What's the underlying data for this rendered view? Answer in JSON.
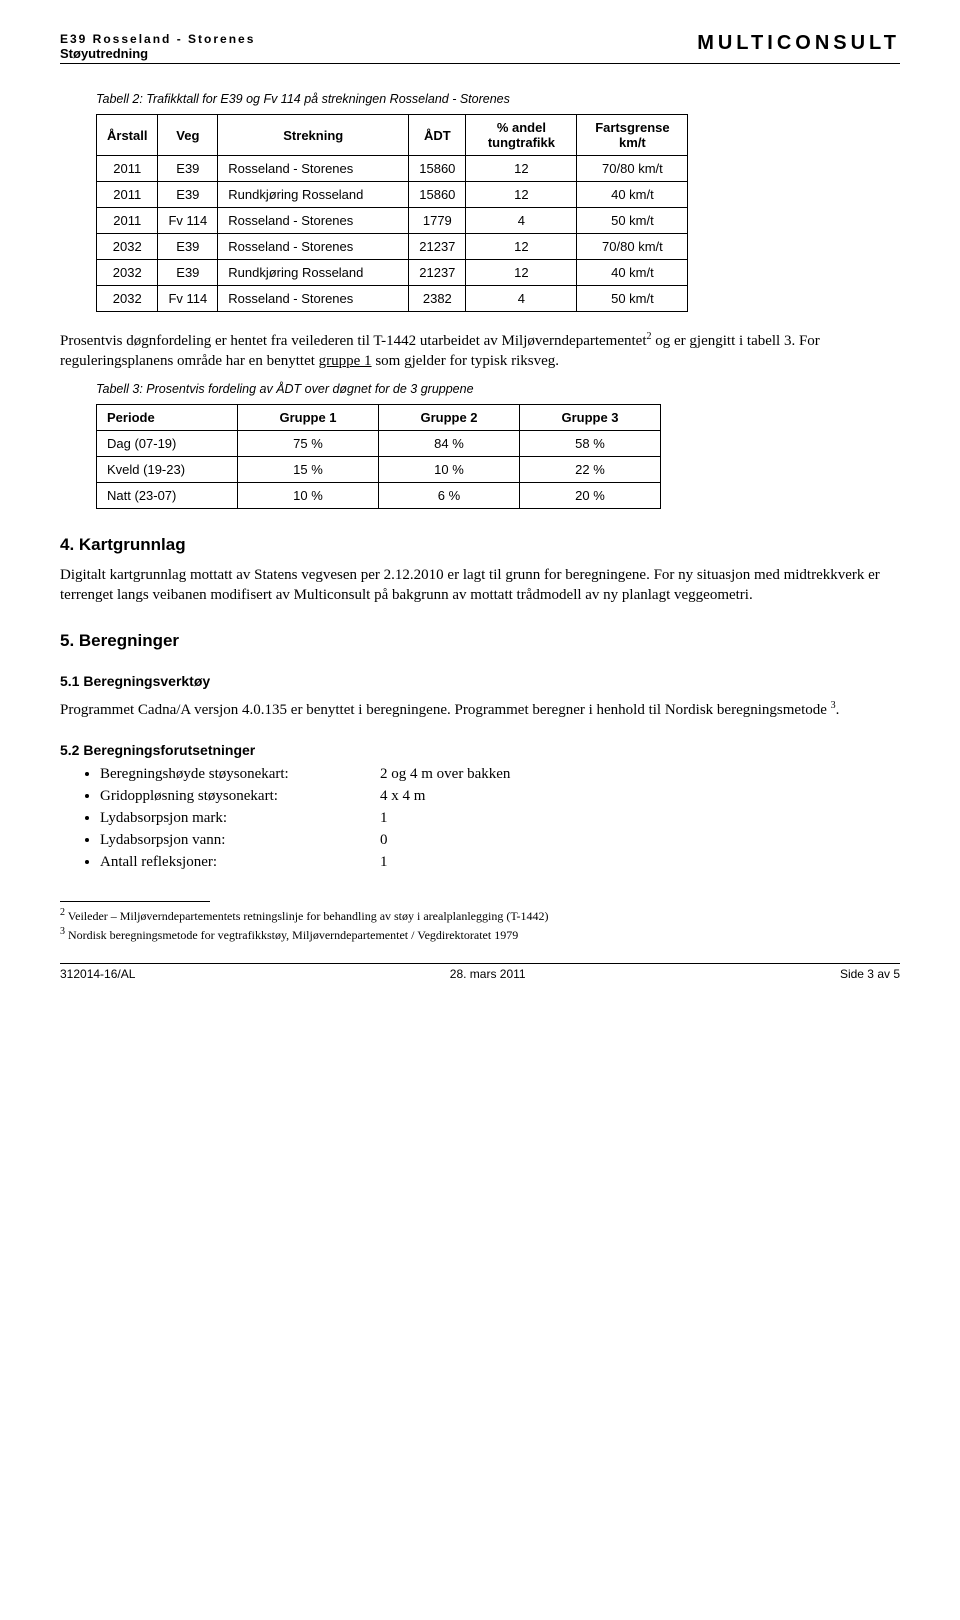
{
  "header": {
    "left_line1": "E39 Rosseland - Storenes",
    "left_line2": "Støyutredning",
    "right": "MULTICONSULT"
  },
  "table2": {
    "caption": "Tabell 2: Trafikktall for E39 og Fv 114 på strekningen Rosseland - Storenes",
    "columns": [
      "Årstall",
      "Veg",
      "Strekning",
      "ÅDT",
      "% andel tungtrafikk",
      "Fartsgrense km/t"
    ],
    "rows": [
      [
        "2011",
        "E39",
        "Rosseland - Storenes",
        "15860",
        "12",
        "70/80 km/t"
      ],
      [
        "2011",
        "E39",
        "Rundkjøring Rosseland",
        "15860",
        "12",
        "40 km/t"
      ],
      [
        "2011",
        "Fv 114",
        "Rosseland - Storenes",
        "1779",
        "4",
        "50 km/t"
      ],
      [
        "2032",
        "E39",
        "Rosseland - Storenes",
        "21237",
        "12",
        "70/80 km/t"
      ],
      [
        "2032",
        "E39",
        "Rundkjøring Rosseland",
        "21237",
        "12",
        "40 km/t"
      ],
      [
        "2032",
        "Fv 114",
        "Rosseland - Storenes",
        "2382",
        "4",
        "50 km/t"
      ]
    ]
  },
  "para1a": "Prosentvis døgnfordeling er hentet fra veilederen til T-1442 utarbeidet av Miljøverndepartementet",
  "para1b": " og er gjengitt i tabell 3. For reguleringsplanens område har en benyttet ",
  "para1_underline": "gruppe 1",
  "para1c": " som gjelder for typisk riksveg.",
  "table3": {
    "caption": "Tabell 3: Prosentvis fordeling av ÅDT over døgnet for de 3 gruppene",
    "columns": [
      "Periode",
      "Gruppe 1",
      "Gruppe 2",
      "Gruppe 3"
    ],
    "rows": [
      [
        "Dag (07-19)",
        "75 %",
        "84 %",
        "58 %"
      ],
      [
        "Kveld (19-23)",
        "15 %",
        "10 %",
        "22 %"
      ],
      [
        "Natt (23-07)",
        "10 %",
        "6 %",
        "20 %"
      ]
    ]
  },
  "sec4": {
    "title": "4.      Kartgrunnlag",
    "text": "Digitalt kartgrunnlag mottatt av Statens vegvesen per 2.12.2010 er lagt til grunn for beregningene. For ny situasjon med midtrekkverk er terrenget langs veibanen modifisert av Multiconsult på bakgrunn av mottatt trådmodell av ny planlagt veggeometri."
  },
  "sec5": {
    "title": "5.      Beregninger"
  },
  "sec51": {
    "title": "5.1      Beregningsverktøy",
    "text_a": "Programmet Cadna/A versjon 4.0.135 er benyttet i beregningene. Programmet beregner i henhold til Nordisk beregningsmetode ",
    "text_b": "."
  },
  "sec52": {
    "title": "5.2      Beregningsforutsetninger",
    "items": [
      {
        "label": "Beregningshøyde støysonekart:",
        "value": "2 og 4 m over bakken"
      },
      {
        "label": "Gridoppløsning støysonekart:",
        "value": "4 x 4 m"
      },
      {
        "label": "Lydabsorpsjon mark:",
        "value": "1"
      },
      {
        "label": "Lydabsorpsjon vann:",
        "value": "0"
      },
      {
        "label": "Antall refleksjoner:",
        "value": "1"
      }
    ]
  },
  "footnotes": {
    "f2_num": "2",
    "f2": " Veileder – Miljøverndepartementets retningslinje for behandling av støy i arealplanlegging (T-1442)",
    "f3_num": "3",
    "f3": " Nordisk beregningsmetode for vegtrafikkstøy, Miljøverndepartementet / Vegdirektoratet 1979"
  },
  "footer": {
    "left": "312014-16/AL",
    "center": "28. mars 2011",
    "right": "Side 3 av 5"
  },
  "refs": {
    "r2": "2",
    "r3": "3"
  }
}
